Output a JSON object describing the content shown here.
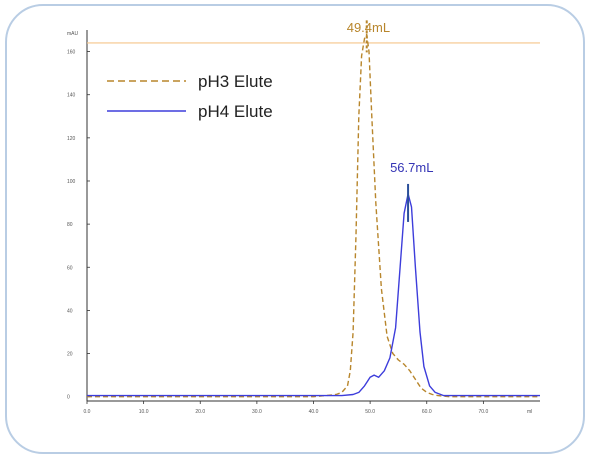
{
  "chart_data": {
    "type": "line",
    "title": "",
    "xlabel": "",
    "ylabel": "",
    "x_unit": "ml",
    "y_unit": "mAU",
    "xlim": [
      0,
      80
    ],
    "ylim": [
      -2,
      170
    ],
    "x_ticks": [
      "0.0",
      "10.0",
      "20.0",
      "30.0",
      "40.0",
      "50.0",
      "60.0",
      "70.0"
    ],
    "y_ticks": [
      "0",
      "20",
      "40",
      "60",
      "80",
      "100",
      "120",
      "140",
      "160"
    ],
    "grid": false,
    "legend_position": "top-left",
    "threshold_line": {
      "y": 164,
      "color": "#f5c58a"
    },
    "series": [
      {
        "name": "pH3 Elute",
        "style": "dashed",
        "color": "#b8862c",
        "x": [
          0,
          10,
          20,
          30,
          40,
          44,
          45,
          46,
          46.5,
          47,
          47.5,
          48,
          48.5,
          49,
          49.4,
          49.8,
          50.3,
          51,
          52,
          53,
          54,
          55,
          56,
          57,
          58,
          59,
          60,
          61,
          62,
          64,
          70,
          80
        ],
        "y": [
          0,
          0,
          0,
          0,
          0,
          1,
          2,
          5,
          12,
          30,
          75,
          130,
          158,
          166,
          168,
          160,
          130,
          90,
          50,
          28,
          20,
          17,
          15,
          12,
          8,
          4,
          2,
          1,
          0.5,
          0,
          0,
          0
        ]
      },
      {
        "name": "pH4 Elute",
        "style": "solid",
        "color": "#3d3ddb",
        "x": [
          0,
          10,
          20,
          30,
          40,
          45,
          47,
          48,
          49,
          50,
          50.7,
          51.5,
          52.5,
          53.5,
          54.5,
          55.3,
          56,
          56.7,
          57.3,
          58,
          58.8,
          59.5,
          60.5,
          61.5,
          63,
          70,
          80
        ],
        "y": [
          0.5,
          0.5,
          0.5,
          0.5,
          0.5,
          0.5,
          1,
          2,
          5,
          9,
          10,
          9,
          12,
          18,
          32,
          60,
          85,
          94,
          88,
          60,
          30,
          14,
          5,
          2,
          0.5,
          0.5,
          0.5
        ]
      }
    ],
    "annotations": [
      {
        "label": "49.4mL",
        "x": 49.4,
        "series": "pH3 Elute",
        "color": "#b8862c"
      },
      {
        "label": "56.7mL",
        "x": 56.7,
        "series": "pH4 Elute",
        "color": "#3535b5"
      }
    ]
  }
}
